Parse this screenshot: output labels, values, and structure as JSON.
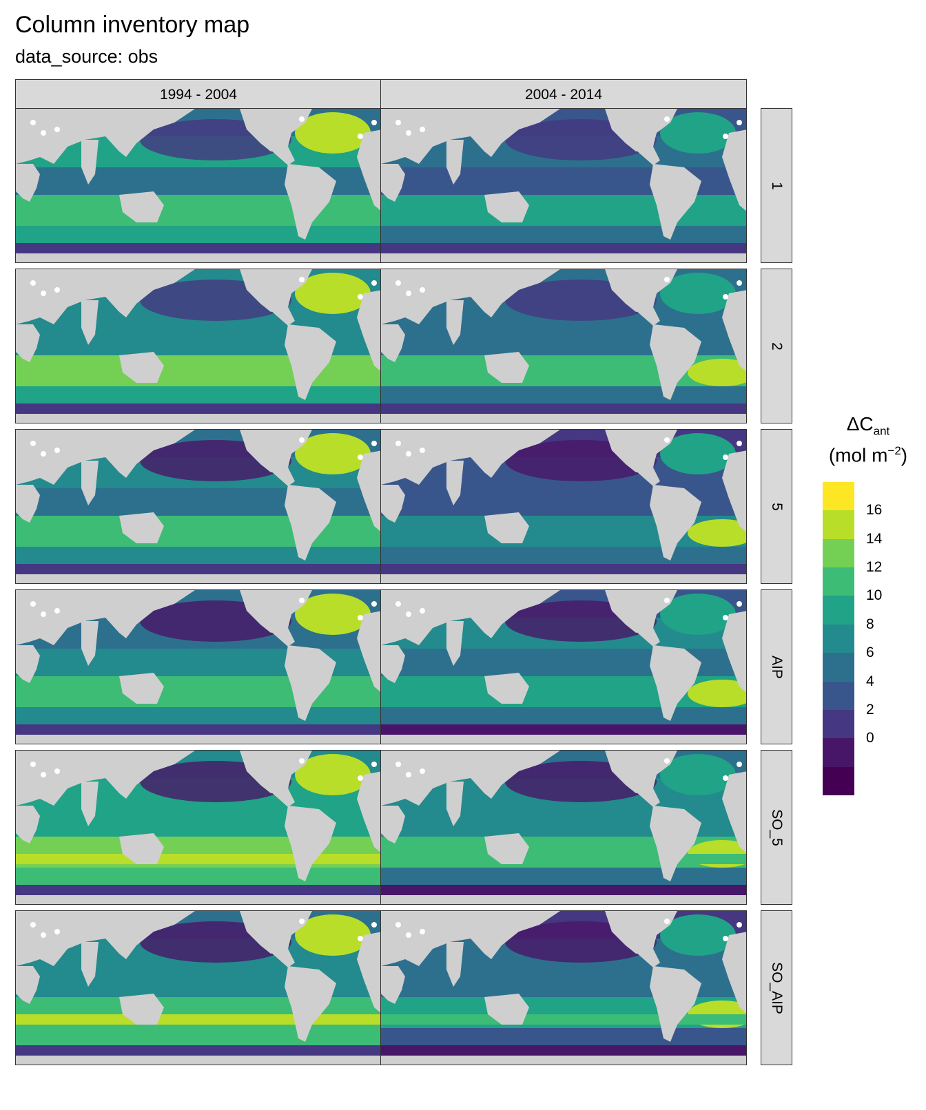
{
  "title": "Column inventory map",
  "subtitle": "data_source: obs",
  "columns": [
    "1994 - 2004",
    "2004 - 2014"
  ],
  "rows": [
    "1",
    "2",
    "5",
    "AIP",
    "SO_5",
    "SO_AIP"
  ],
  "legend": {
    "title_main": "ΔC",
    "title_sub": "ant",
    "unit_prefix": "(mol m",
    "unit_sup": "−2",
    "unit_suffix": ")",
    "tick_labels": [
      "16",
      "14",
      "12",
      "10",
      "8",
      "6",
      "4",
      "2",
      "0"
    ],
    "colors": [
      "#fde725",
      "#b8de29",
      "#74d055",
      "#3cbc75",
      "#20a386",
      "#238a8d",
      "#2d708e",
      "#39568c",
      "#453781",
      "#481668",
      "#440154"
    ]
  },
  "land_color": "#cfcfcf",
  "ice_color": "#ffffff"
}
